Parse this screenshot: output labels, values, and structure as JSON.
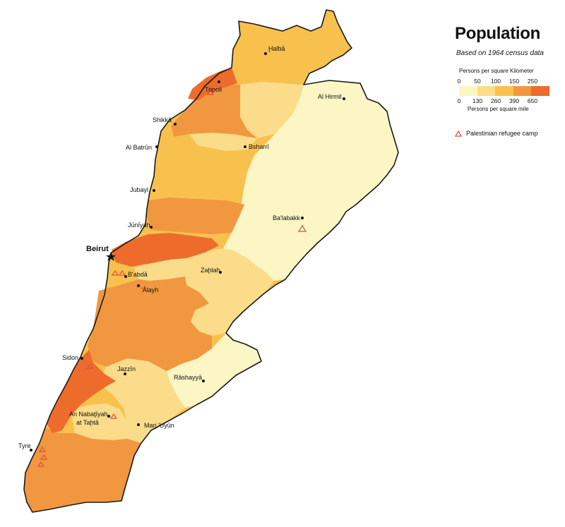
{
  "legend": {
    "title": "Population",
    "subtitle": "Based on 1964 census data",
    "km_label": "Persons per square Kilometer",
    "km_ticks": [
      "0",
      "50",
      "100",
      "150",
      "250"
    ],
    "mile_ticks": [
      "0",
      "130",
      "260",
      "390",
      "650"
    ],
    "mile_label": "Persons per square mile",
    "camp_label": "Palestinian refugee camp",
    "colors": [
      "#fbf6c4",
      "#fbdc8a",
      "#f8c14e",
      "#f19740",
      "#ed6c2c"
    ],
    "camp_color": "#e0503a"
  },
  "cities": [
    {
      "id": "halba",
      "name": "Ḩalbā"
    },
    {
      "id": "tripoli",
      "name": "Tripoli"
    },
    {
      "id": "al-hirmil",
      "name": "Al Hirmil"
    },
    {
      "id": "shikka",
      "name": "Shikkā"
    },
    {
      "id": "al-batrun",
      "name": "Al Batrūn"
    },
    {
      "id": "bsharri",
      "name": "Bsharrī"
    },
    {
      "id": "jubayl",
      "name": "Jubayl"
    },
    {
      "id": "baalbakk",
      "name": "Ba'labakk"
    },
    {
      "id": "juniyah",
      "name": "Jūnīyah"
    },
    {
      "id": "beirut",
      "name": "Beirut"
    },
    {
      "id": "babda",
      "name": "B'abdā"
    },
    {
      "id": "zahlah",
      "name": "Zaḩlah"
    },
    {
      "id": "alayh",
      "name": "'Ālayh"
    },
    {
      "id": "sidon",
      "name": "Sidon"
    },
    {
      "id": "jazzin",
      "name": "Jazzīn"
    },
    {
      "id": "rashayya",
      "name": "Rāshayyā"
    },
    {
      "id": "nabatiyah",
      "name": "An Nabaţīyah"
    },
    {
      "id": "nabatiyah2",
      "name": "at Taḩtā"
    },
    {
      "id": "marj",
      "name": "Marj 'Uyūn"
    },
    {
      "id": "tyre",
      "name": "Tyre"
    }
  ]
}
